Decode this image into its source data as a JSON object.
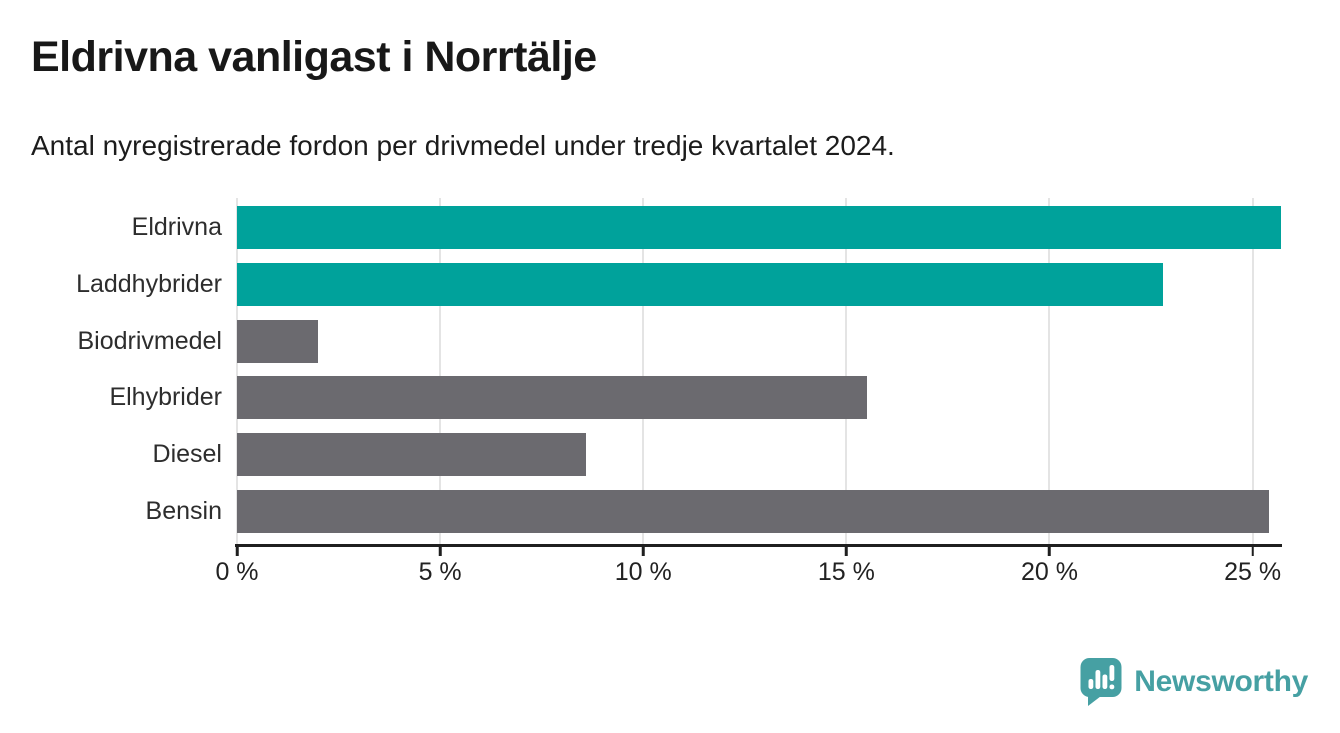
{
  "chart_data": {
    "type": "bar",
    "orientation": "horizontal",
    "title": "Eldrivna vanligast i Norrtälje",
    "subtitle": "Antal nyregistrerade fordon per drivmedel under tredje kvartalet 2024.",
    "categories": [
      "Eldrivna",
      "Laddhybrider",
      "Biodrivmedel",
      "Elhybrider",
      "Diesel",
      "Bensin"
    ],
    "values": [
      25.7,
      22.8,
      2.0,
      15.5,
      8.6,
      25.4
    ],
    "unit": "%",
    "xlim": [
      0,
      25.7
    ],
    "xticks": [
      0,
      5,
      10,
      15,
      20,
      25
    ],
    "xtick_labels": [
      "0 %",
      "5 %",
      "10 %",
      "15 %",
      "20 %",
      "25 %"
    ],
    "bar_colors": [
      "#00a29b",
      "#00a29b",
      "#6b6a6f",
      "#6b6a6f",
      "#6b6a6f",
      "#6b6a6f"
    ],
    "grid": "vertical-only",
    "grid_color": "#e4e4e4",
    "axis_color": "#1f1f1f",
    "legend": "none"
  },
  "footer": {
    "brand": "Newsworthy",
    "brand_color": "#46a0a3"
  }
}
